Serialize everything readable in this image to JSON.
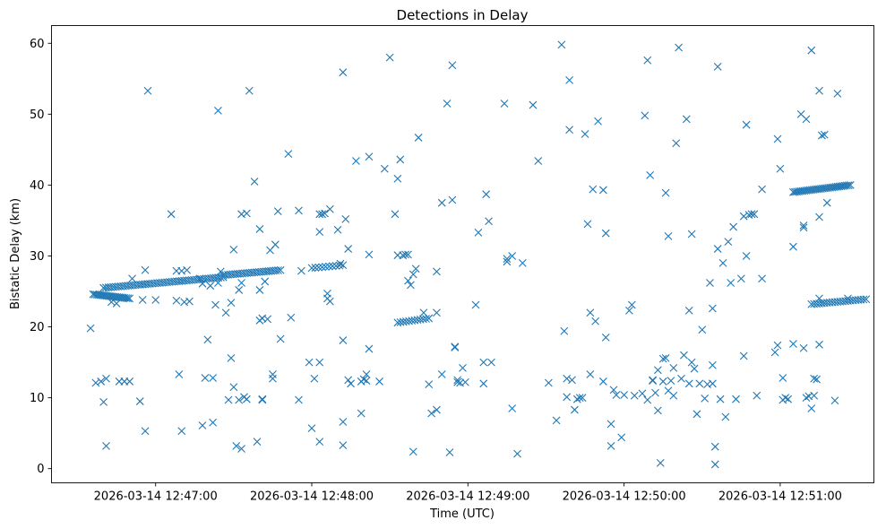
{
  "chart_data": {
    "type": "scatter",
    "title": "Detections in Delay",
    "xlabel": "Time (UTC)",
    "ylabel": "Bistatic Delay (km)",
    "marker": "x",
    "color": "#1f77b4",
    "grid": false,
    "legend": "none",
    "xlim": [
      "2026-03-14 12:46:20",
      "2026-03-14 12:51:36"
    ],
    "ylim": [
      -2,
      62.5
    ],
    "xticks": [
      "2026-03-14 12:47:00",
      "2026-03-14 12:48:00",
      "2026-03-14 12:49:00",
      "2026-03-14 12:50:00",
      "2026-03-14 12:51:00"
    ],
    "yticks": [
      "0",
      "10",
      "20",
      "30",
      "40",
      "50",
      "60"
    ],
    "tracks": [
      {
        "start": "2026-03-14 12:46:36",
        "end": "2026-03-14 12:46:50",
        "y_start": 24.6,
        "y_end": 24.0,
        "count": 22
      },
      {
        "start": "2026-03-14 12:46:40",
        "end": "2026-03-14 12:47:26",
        "y_start": 25.5,
        "y_end": 27.0,
        "count": 50
      },
      {
        "start": "2026-03-14 12:47:26",
        "end": "2026-03-14 12:47:48",
        "y_start": 27.3,
        "y_end": 28.0,
        "count": 25
      },
      {
        "start": "2026-03-14 12:48:00",
        "end": "2026-03-14 12:48:12",
        "y_start": 28.3,
        "y_end": 28.7,
        "count": 10
      },
      {
        "start": "2026-03-14 12:48:33",
        "end": "2026-03-14 12:48:45",
        "y_start": 20.6,
        "y_end": 21.2,
        "count": 12
      },
      {
        "start": "2026-03-14 12:51:05",
        "end": "2026-03-14 12:51:27",
        "y_start": 39.0,
        "y_end": 40.0,
        "count": 32
      },
      {
        "start": "2026-03-14 12:51:12",
        "end": "2026-03-14 12:51:33",
        "y_start": 23.2,
        "y_end": 23.9,
        "count": 22
      }
    ],
    "points": [
      [
        "2026-03-14 12:46:35",
        19.8
      ],
      [
        "2026-03-14 12:46:37",
        12.1
      ],
      [
        "2026-03-14 12:46:39",
        12.3
      ],
      [
        "2026-03-14 12:46:40",
        9.4
      ],
      [
        "2026-03-14 12:46:41",
        12.7
      ],
      [
        "2026-03-14 12:46:41",
        3.2
      ],
      [
        "2026-03-14 12:46:43",
        23.5
      ],
      [
        "2026-03-14 12:46:45",
        23.3
      ],
      [
        "2026-03-14 12:46:46",
        12.3
      ],
      [
        "2026-03-14 12:46:48",
        12.3
      ],
      [
        "2026-03-14 12:46:50",
        12.3
      ],
      [
        "2026-03-14 12:46:51",
        26.8
      ],
      [
        "2026-03-14 12:46:54",
        9.5
      ],
      [
        "2026-03-14 12:46:55",
        23.8
      ],
      [
        "2026-03-14 12:46:56",
        28.0
      ],
      [
        "2026-03-14 12:46:56",
        5.3
      ],
      [
        "2026-03-14 12:46:57",
        53.3
      ],
      [
        "2026-03-14 12:47:00",
        23.8
      ],
      [
        "2026-03-14 12:47:06",
        35.9
      ],
      [
        "2026-03-14 12:47:08",
        27.9
      ],
      [
        "2026-03-14 12:47:08",
        23.7
      ],
      [
        "2026-03-14 12:47:09",
        13.3
      ],
      [
        "2026-03-14 12:47:10",
        5.3
      ],
      [
        "2026-03-14 12:47:10",
        27.9
      ],
      [
        "2026-03-14 12:47:11",
        23.5
      ],
      [
        "2026-03-14 12:47:12",
        28.0
      ],
      [
        "2026-03-14 12:47:13",
        23.6
      ],
      [
        "2026-03-14 12:47:17",
        26.8
      ],
      [
        "2026-03-14 12:47:18",
        26.1
      ],
      [
        "2026-03-14 12:47:18",
        6.1
      ],
      [
        "2026-03-14 12:47:19",
        12.8
      ],
      [
        "2026-03-14 12:47:20",
        18.2
      ],
      [
        "2026-03-14 12:47:21",
        25.8
      ],
      [
        "2026-03-14 12:47:22",
        6.5
      ],
      [
        "2026-03-14 12:47:22",
        12.8
      ],
      [
        "2026-03-14 12:47:23",
        23.1
      ],
      [
        "2026-03-14 12:47:24",
        50.5
      ],
      [
        "2026-03-14 12:47:24",
        26.2
      ],
      [
        "2026-03-14 12:47:25",
        27.8
      ],
      [
        "2026-03-14 12:47:27",
        22.0
      ],
      [
        "2026-03-14 12:47:28",
        9.7
      ],
      [
        "2026-03-14 12:47:29",
        15.6
      ],
      [
        "2026-03-14 12:47:29",
        23.4
      ],
      [
        "2026-03-14 12:47:30",
        11.5
      ],
      [
        "2026-03-14 12:47:30",
        30.9
      ],
      [
        "2026-03-14 12:47:31",
        3.2
      ],
      [
        "2026-03-14 12:47:32",
        9.7
      ],
      [
        "2026-03-14 12:47:32",
        25.2
      ],
      [
        "2026-03-14 12:47:33",
        35.9
      ],
      [
        "2026-03-14 12:47:33",
        26.2
      ],
      [
        "2026-03-14 12:47:33",
        2.8
      ],
      [
        "2026-03-14 12:47:34",
        10.1
      ],
      [
        "2026-03-14 12:47:35",
        9.8
      ],
      [
        "2026-03-14 12:47:35",
        36.0
      ],
      [
        "2026-03-14 12:47:36",
        53.3
      ],
      [
        "2026-03-14 12:47:38",
        40.5
      ],
      [
        "2026-03-14 12:47:39",
        3.8
      ],
      [
        "2026-03-14 12:47:40",
        20.9
      ],
      [
        "2026-03-14 12:47:40",
        25.2
      ],
      [
        "2026-03-14 12:47:40",
        33.8
      ],
      [
        "2026-03-14 12:47:41",
        9.7
      ],
      [
        "2026-03-14 12:47:41",
        9.8
      ],
      [
        "2026-03-14 12:47:41",
        21.2
      ],
      [
        "2026-03-14 12:47:42",
        26.4
      ],
      [
        "2026-03-14 12:47:43",
        21.1
      ],
      [
        "2026-03-14 12:47:44",
        30.8
      ],
      [
        "2026-03-14 12:47:45",
        13.3
      ],
      [
        "2026-03-14 12:47:45",
        12.7
      ],
      [
        "2026-03-14 12:47:46",
        31.6
      ],
      [
        "2026-03-14 12:47:47",
        36.3
      ],
      [
        "2026-03-14 12:47:48",
        18.3
      ],
      [
        "2026-03-14 12:47:51",
        44.4
      ],
      [
        "2026-03-14 12:47:52",
        21.3
      ],
      [
        "2026-03-14 12:47:55",
        36.4
      ],
      [
        "2026-03-14 12:47:55",
        9.7
      ],
      [
        "2026-03-14 12:47:56",
        27.9
      ],
      [
        "2026-03-14 12:47:59",
        15.0
      ],
      [
        "2026-03-14 12:48:00",
        5.7
      ],
      [
        "2026-03-14 12:48:01",
        12.7
      ],
      [
        "2026-03-14 12:48:03",
        3.8
      ],
      [
        "2026-03-14 12:48:03",
        15.0
      ],
      [
        "2026-03-14 12:48:03",
        35.9
      ],
      [
        "2026-03-14 12:48:03",
        33.4
      ],
      [
        "2026-03-14 12:48:04",
        35.9
      ],
      [
        "2026-03-14 12:48:05",
        36.0
      ],
      [
        "2026-03-14 12:48:06",
        24.7
      ],
      [
        "2026-03-14 12:48:06",
        24.0
      ],
      [
        "2026-03-14 12:48:07",
        23.6
      ],
      [
        "2026-03-14 12:48:07",
        36.6
      ],
      [
        "2026-03-14 12:48:10",
        33.7
      ],
      [
        "2026-03-14 12:48:11",
        28.9
      ],
      [
        "2026-03-14 12:48:12",
        3.3
      ],
      [
        "2026-03-14 12:48:12",
        6.6
      ],
      [
        "2026-03-14 12:48:12",
        55.9
      ],
      [
        "2026-03-14 12:48:12",
        18.1
      ],
      [
        "2026-03-14 12:48:13",
        35.2
      ],
      [
        "2026-03-14 12:48:14",
        12.5
      ],
      [
        "2026-03-14 12:48:14",
        31.0
      ],
      [
        "2026-03-14 12:48:15",
        12.0
      ],
      [
        "2026-03-14 12:48:17",
        43.4
      ],
      [
        "2026-03-14 12:48:19",
        12.3
      ],
      [
        "2026-03-14 12:48:19",
        7.8
      ],
      [
        "2026-03-14 12:48:20",
        12.6
      ],
      [
        "2026-03-14 12:48:21",
        13.3
      ],
      [
        "2026-03-14 12:48:21",
        12.4
      ],
      [
        "2026-03-14 12:48:22",
        30.2
      ],
      [
        "2026-03-14 12:48:22",
        16.9
      ],
      [
        "2026-03-14 12:48:22",
        44.0
      ],
      [
        "2026-03-14 12:48:26",
        12.3
      ],
      [
        "2026-03-14 12:48:28",
        42.3
      ],
      [
        "2026-03-14 12:48:30",
        58.0
      ],
      [
        "2026-03-14 12:48:32",
        35.9
      ],
      [
        "2026-03-14 12:48:33",
        40.9
      ],
      [
        "2026-03-14 12:48:33",
        30.1
      ],
      [
        "2026-03-14 12:48:34",
        43.6
      ],
      [
        "2026-03-14 12:48:35",
        30.1
      ],
      [
        "2026-03-14 12:48:36",
        30.2
      ],
      [
        "2026-03-14 12:48:37",
        30.2
      ],
      [
        "2026-03-14 12:48:37",
        26.5
      ],
      [
        "2026-03-14 12:48:38",
        25.9
      ],
      [
        "2026-03-14 12:48:39",
        27.4
      ],
      [
        "2026-03-14 12:48:39",
        2.4
      ],
      [
        "2026-03-14 12:48:40",
        28.2
      ],
      [
        "2026-03-14 12:48:41",
        46.7
      ],
      [
        "2026-03-14 12:48:43",
        22.0
      ],
      [
        "2026-03-14 12:48:45",
        11.9
      ],
      [
        "2026-03-14 12:48:46",
        7.8
      ],
      [
        "2026-03-14 12:48:48",
        8.3
      ],
      [
        "2026-03-14 12:48:48",
        27.8
      ],
      [
        "2026-03-14 12:48:48",
        22.0
      ],
      [
        "2026-03-14 12:48:50",
        13.3
      ],
      [
        "2026-03-14 12:48:50",
        37.5
      ],
      [
        "2026-03-14 12:48:52",
        51.5
      ],
      [
        "2026-03-14 12:48:53",
        2.3
      ],
      [
        "2026-03-14 12:48:54",
        37.9
      ],
      [
        "2026-03-14 12:48:54",
        56.9
      ],
      [
        "2026-03-14 12:48:55",
        17.1
      ],
      [
        "2026-03-14 12:48:55",
        17.2
      ],
      [
        "2026-03-14 12:48:56",
        12.5
      ],
      [
        "2026-03-14 12:48:56",
        12.2
      ],
      [
        "2026-03-14 12:48:57",
        12.1
      ],
      [
        "2026-03-14 12:48:58",
        14.2
      ],
      [
        "2026-03-14 12:48:59",
        12.2
      ],
      [
        "2026-03-14 12:49:03",
        23.1
      ],
      [
        "2026-03-14 12:49:04",
        33.3
      ],
      [
        "2026-03-14 12:49:06",
        15.0
      ],
      [
        "2026-03-14 12:49:06",
        12.0
      ],
      [
        "2026-03-14 12:49:07",
        38.7
      ],
      [
        "2026-03-14 12:49:08",
        34.9
      ],
      [
        "2026-03-14 12:49:09",
        15.0
      ],
      [
        "2026-03-14 12:49:14",
        51.5
      ],
      [
        "2026-03-14 12:49:15",
        29.6
      ],
      [
        "2026-03-14 12:49:15",
        29.2
      ],
      [
        "2026-03-14 12:49:17",
        30.0
      ],
      [
        "2026-03-14 12:49:17",
        8.5
      ],
      [
        "2026-03-14 12:49:19",
        2.1
      ],
      [
        "2026-03-14 12:49:21",
        29.0
      ],
      [
        "2026-03-14 12:49:25",
        51.3
      ],
      [
        "2026-03-14 12:49:27",
        43.4
      ],
      [
        "2026-03-14 12:49:31",
        12.1
      ],
      [
        "2026-03-14 12:49:34",
        6.8
      ],
      [
        "2026-03-14 12:49:36",
        59.8
      ],
      [
        "2026-03-14 12:49:37",
        19.4
      ],
      [
        "2026-03-14 12:49:38",
        10.1
      ],
      [
        "2026-03-14 12:49:38",
        12.7
      ],
      [
        "2026-03-14 12:49:39",
        47.8
      ],
      [
        "2026-03-14 12:49:39",
        54.8
      ],
      [
        "2026-03-14 12:49:40",
        12.5
      ],
      [
        "2026-03-14 12:49:41",
        8.3
      ],
      [
        "2026-03-14 12:49:42",
        9.8
      ],
      [
        "2026-03-14 12:49:43",
        10.0
      ],
      [
        "2026-03-14 12:49:44",
        10.0
      ],
      [
        "2026-03-14 12:49:45",
        47.2
      ],
      [
        "2026-03-14 12:49:46",
        34.5
      ],
      [
        "2026-03-14 12:49:47",
        13.3
      ],
      [
        "2026-03-14 12:49:47",
        22.0
      ],
      [
        "2026-03-14 12:49:48",
        39.4
      ],
      [
        "2026-03-14 12:49:49",
        20.8
      ],
      [
        "2026-03-14 12:49:50",
        49.0
      ],
      [
        "2026-03-14 12:49:52",
        39.3
      ],
      [
        "2026-03-14 12:49:52",
        12.3
      ],
      [
        "2026-03-14 12:49:53",
        33.2
      ],
      [
        "2026-03-14 12:49:53",
        18.5
      ],
      [
        "2026-03-14 12:49:55",
        3.2
      ],
      [
        "2026-03-14 12:49:55",
        6.3
      ],
      [
        "2026-03-14 12:49:56",
        11.1
      ],
      [
        "2026-03-14 12:49:57",
        10.4
      ],
      [
        "2026-03-14 12:49:59",
        4.4
      ],
      [
        "2026-03-14 12:50:00",
        10.4
      ],
      [
        "2026-03-14 12:50:02",
        22.3
      ],
      [
        "2026-03-14 12:50:03",
        23.1
      ],
      [
        "2026-03-14 12:50:04",
        10.3
      ],
      [
        "2026-03-14 12:50:07",
        10.6
      ],
      [
        "2026-03-14 12:50:08",
        49.8
      ],
      [
        "2026-03-14 12:50:09",
        57.6
      ],
      [
        "2026-03-14 12:50:09",
        9.7
      ],
      [
        "2026-03-14 12:50:10",
        41.4
      ],
      [
        "2026-03-14 12:50:11",
        12.5
      ],
      [
        "2026-03-14 12:50:11",
        12.4
      ],
      [
        "2026-03-14 12:50:12",
        10.7
      ],
      [
        "2026-03-14 12:50:13",
        13.9
      ],
      [
        "2026-03-14 12:50:13",
        8.2
      ],
      [
        "2026-03-14 12:50:14",
        0.8
      ],
      [
        "2026-03-14 12:50:15",
        12.3
      ],
      [
        "2026-03-14 12:50:15",
        15.5
      ],
      [
        "2026-03-14 12:50:16",
        38.9
      ],
      [
        "2026-03-14 12:50:16",
        15.6
      ],
      [
        "2026-03-14 12:50:17",
        11.0
      ],
      [
        "2026-03-14 12:50:17",
        32.8
      ],
      [
        "2026-03-14 12:50:18",
        12.4
      ],
      [
        "2026-03-14 12:50:19",
        10.3
      ],
      [
        "2026-03-14 12:50:19",
        14.2
      ],
      [
        "2026-03-14 12:50:20",
        45.9
      ],
      [
        "2026-03-14 12:50:21",
        59.4
      ],
      [
        "2026-03-14 12:50:22",
        12.7
      ],
      [
        "2026-03-14 12:50:23",
        16.0
      ],
      [
        "2026-03-14 12:50:24",
        49.3
      ],
      [
        "2026-03-14 12:50:25",
        22.3
      ],
      [
        "2026-03-14 12:50:25",
        12.0
      ],
      [
        "2026-03-14 12:50:26",
        15.0
      ],
      [
        "2026-03-14 12:50:26",
        33.1
      ],
      [
        "2026-03-14 12:50:27",
        14.1
      ],
      [
        "2026-03-14 12:50:28",
        7.7
      ],
      [
        "2026-03-14 12:50:29",
        12.0
      ],
      [
        "2026-03-14 12:50:30",
        19.6
      ],
      [
        "2026-03-14 12:50:31",
        9.9
      ],
      [
        "2026-03-14 12:50:32",
        11.9
      ],
      [
        "2026-03-14 12:50:33",
        26.2
      ],
      [
        "2026-03-14 12:50:34",
        14.6
      ],
      [
        "2026-03-14 12:50:34",
        22.6
      ],
      [
        "2026-03-14 12:50:34",
        12.0
      ],
      [
        "2026-03-14 12:50:35",
        3.1
      ],
      [
        "2026-03-14 12:50:35",
        0.6
      ],
      [
        "2026-03-14 12:50:36",
        56.7
      ],
      [
        "2026-03-14 12:50:36",
        31.0
      ],
      [
        "2026-03-14 12:50:37",
        9.8
      ],
      [
        "2026-03-14 12:50:38",
        29.0
      ],
      [
        "2026-03-14 12:50:39",
        7.3
      ],
      [
        "2026-03-14 12:50:40",
        32.0
      ],
      [
        "2026-03-14 12:50:41",
        26.2
      ],
      [
        "2026-03-14 12:50:42",
        34.1
      ],
      [
        "2026-03-14 12:50:43",
        9.8
      ],
      [
        "2026-03-14 12:50:45",
        26.8
      ],
      [
        "2026-03-14 12:50:46",
        15.9
      ],
      [
        "2026-03-14 12:50:46",
        35.6
      ],
      [
        "2026-03-14 12:50:47",
        48.5
      ],
      [
        "2026-03-14 12:50:47",
        30.0
      ],
      [
        "2026-03-14 12:50:48",
        35.8
      ],
      [
        "2026-03-14 12:50:49",
        35.9
      ],
      [
        "2026-03-14 12:50:50",
        35.9
      ],
      [
        "2026-03-14 12:50:51",
        10.3
      ],
      [
        "2026-03-14 12:50:53",
        39.4
      ],
      [
        "2026-03-14 12:50:53",
        26.8
      ],
      [
        "2026-03-14 12:50:58",
        16.4
      ],
      [
        "2026-03-14 12:50:59",
        17.4
      ],
      [
        "2026-03-14 12:50:59",
        46.5
      ],
      [
        "2026-03-14 12:51:00",
        42.3
      ],
      [
        "2026-03-14 12:51:01",
        12.8
      ],
      [
        "2026-03-14 12:51:01",
        9.7
      ],
      [
        "2026-03-14 12:51:02",
        10.0
      ],
      [
        "2026-03-14 12:51:03",
        9.8
      ],
      [
        "2026-03-14 12:51:05",
        31.3
      ],
      [
        "2026-03-14 12:51:05",
        17.6
      ],
      [
        "2026-03-14 12:51:08",
        50.0
      ],
      [
        "2026-03-14 12:51:09",
        17.0
      ],
      [
        "2026-03-14 12:51:09",
        34.3
      ],
      [
        "2026-03-14 12:51:09",
        34.0
      ],
      [
        "2026-03-14 12:51:10",
        49.3
      ],
      [
        "2026-03-14 12:51:10",
        10.0
      ],
      [
        "2026-03-14 12:51:11",
        10.2
      ],
      [
        "2026-03-14 12:51:12",
        59.0
      ],
      [
        "2026-03-14 12:51:12",
        8.5
      ],
      [
        "2026-03-14 12:51:13",
        10.3
      ],
      [
        "2026-03-14 12:51:13",
        12.7
      ],
      [
        "2026-03-14 12:51:14",
        12.6
      ],
      [
        "2026-03-14 12:51:15",
        53.3
      ],
      [
        "2026-03-14 12:51:15",
        24.0
      ],
      [
        "2026-03-14 12:51:15",
        35.5
      ],
      [
        "2026-03-14 12:51:15",
        17.5
      ],
      [
        "2026-03-14 12:51:16",
        47.0
      ],
      [
        "2026-03-14 12:51:17",
        47.1
      ],
      [
        "2026-03-14 12:51:18",
        37.5
      ],
      [
        "2026-03-14 12:51:21",
        9.6
      ],
      [
        "2026-03-14 12:51:22",
        52.9
      ],
      [
        "2026-03-14 12:51:26",
        24.0
      ]
    ]
  }
}
